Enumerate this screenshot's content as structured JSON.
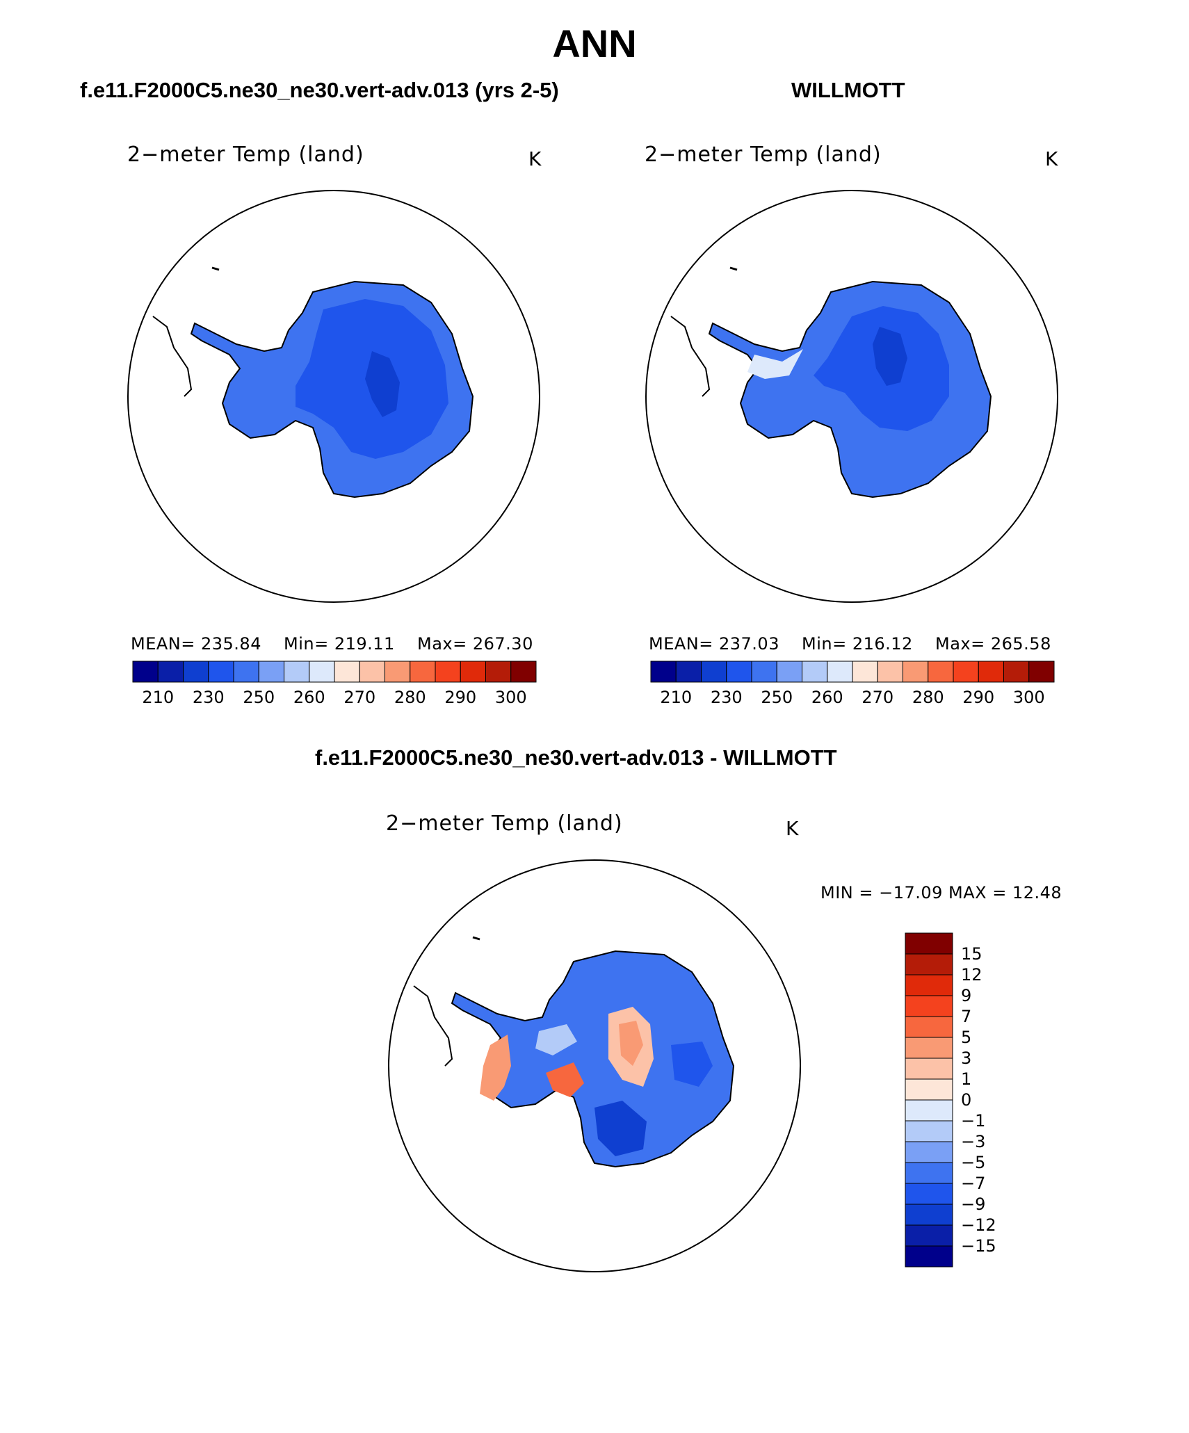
{
  "title": "ANN",
  "panels": [
    {
      "case_title": "f.e11.F2000C5.ne30_ne30.vert-adv.013 (yrs 2-5)",
      "plot_title": "2−meter Temp (land)",
      "units": "K",
      "stats": {
        "mean": "MEAN= 235.84",
        "min": "Min= 219.11",
        "max": "Max= 267.30"
      }
    },
    {
      "case_title": "WILLMOTT",
      "plot_title": "2−meter Temp (land)",
      "units": "K",
      "stats": {
        "mean": "MEAN= 237.03",
        "min": "Min= 216.12",
        "max": "Max= 265.58"
      }
    }
  ],
  "diff": {
    "case_title": "f.e11.F2000C5.ne30_ne30.vert-adv.013 - WILLMOTT",
    "plot_title": "2−meter Temp (land)",
    "units": "K",
    "minmax": "MIN = −17.09 MAX =   12.48"
  },
  "colorbar_abs": {
    "tick_labels": [
      "210",
      "230",
      "250",
      "260",
      "270",
      "280",
      "290",
      "300"
    ],
    "colors": [
      "#00008b",
      "#0a1fa8",
      "#0f3fd0",
      "#1f55ec",
      "#3e73f0",
      "#7aa0f5",
      "#b3cbf8",
      "#dde9fb",
      "#fde6d8",
      "#fcc2a8",
      "#f99a74",
      "#f7673e",
      "#f4421e",
      "#e02a0a",
      "#b41c08",
      "#800000"
    ]
  },
  "colorbar_diff": {
    "tick_labels": [
      "15",
      "12",
      "9",
      "7",
      "5",
      "3",
      "1",
      "0",
      "−1",
      "−3",
      "−5",
      "−7",
      "−9",
      "−12",
      "−15"
    ],
    "colors": [
      "#800000",
      "#b41c08",
      "#e02a0a",
      "#f4421e",
      "#f7673e",
      "#f99a74",
      "#fcc2a8",
      "#fde6d8",
      "#dde9fb",
      "#b3cbf8",
      "#7aa0f5",
      "#3e73f0",
      "#1f55ec",
      "#0f3fd0",
      "#0a1fa8",
      "#00008b"
    ]
  }
}
